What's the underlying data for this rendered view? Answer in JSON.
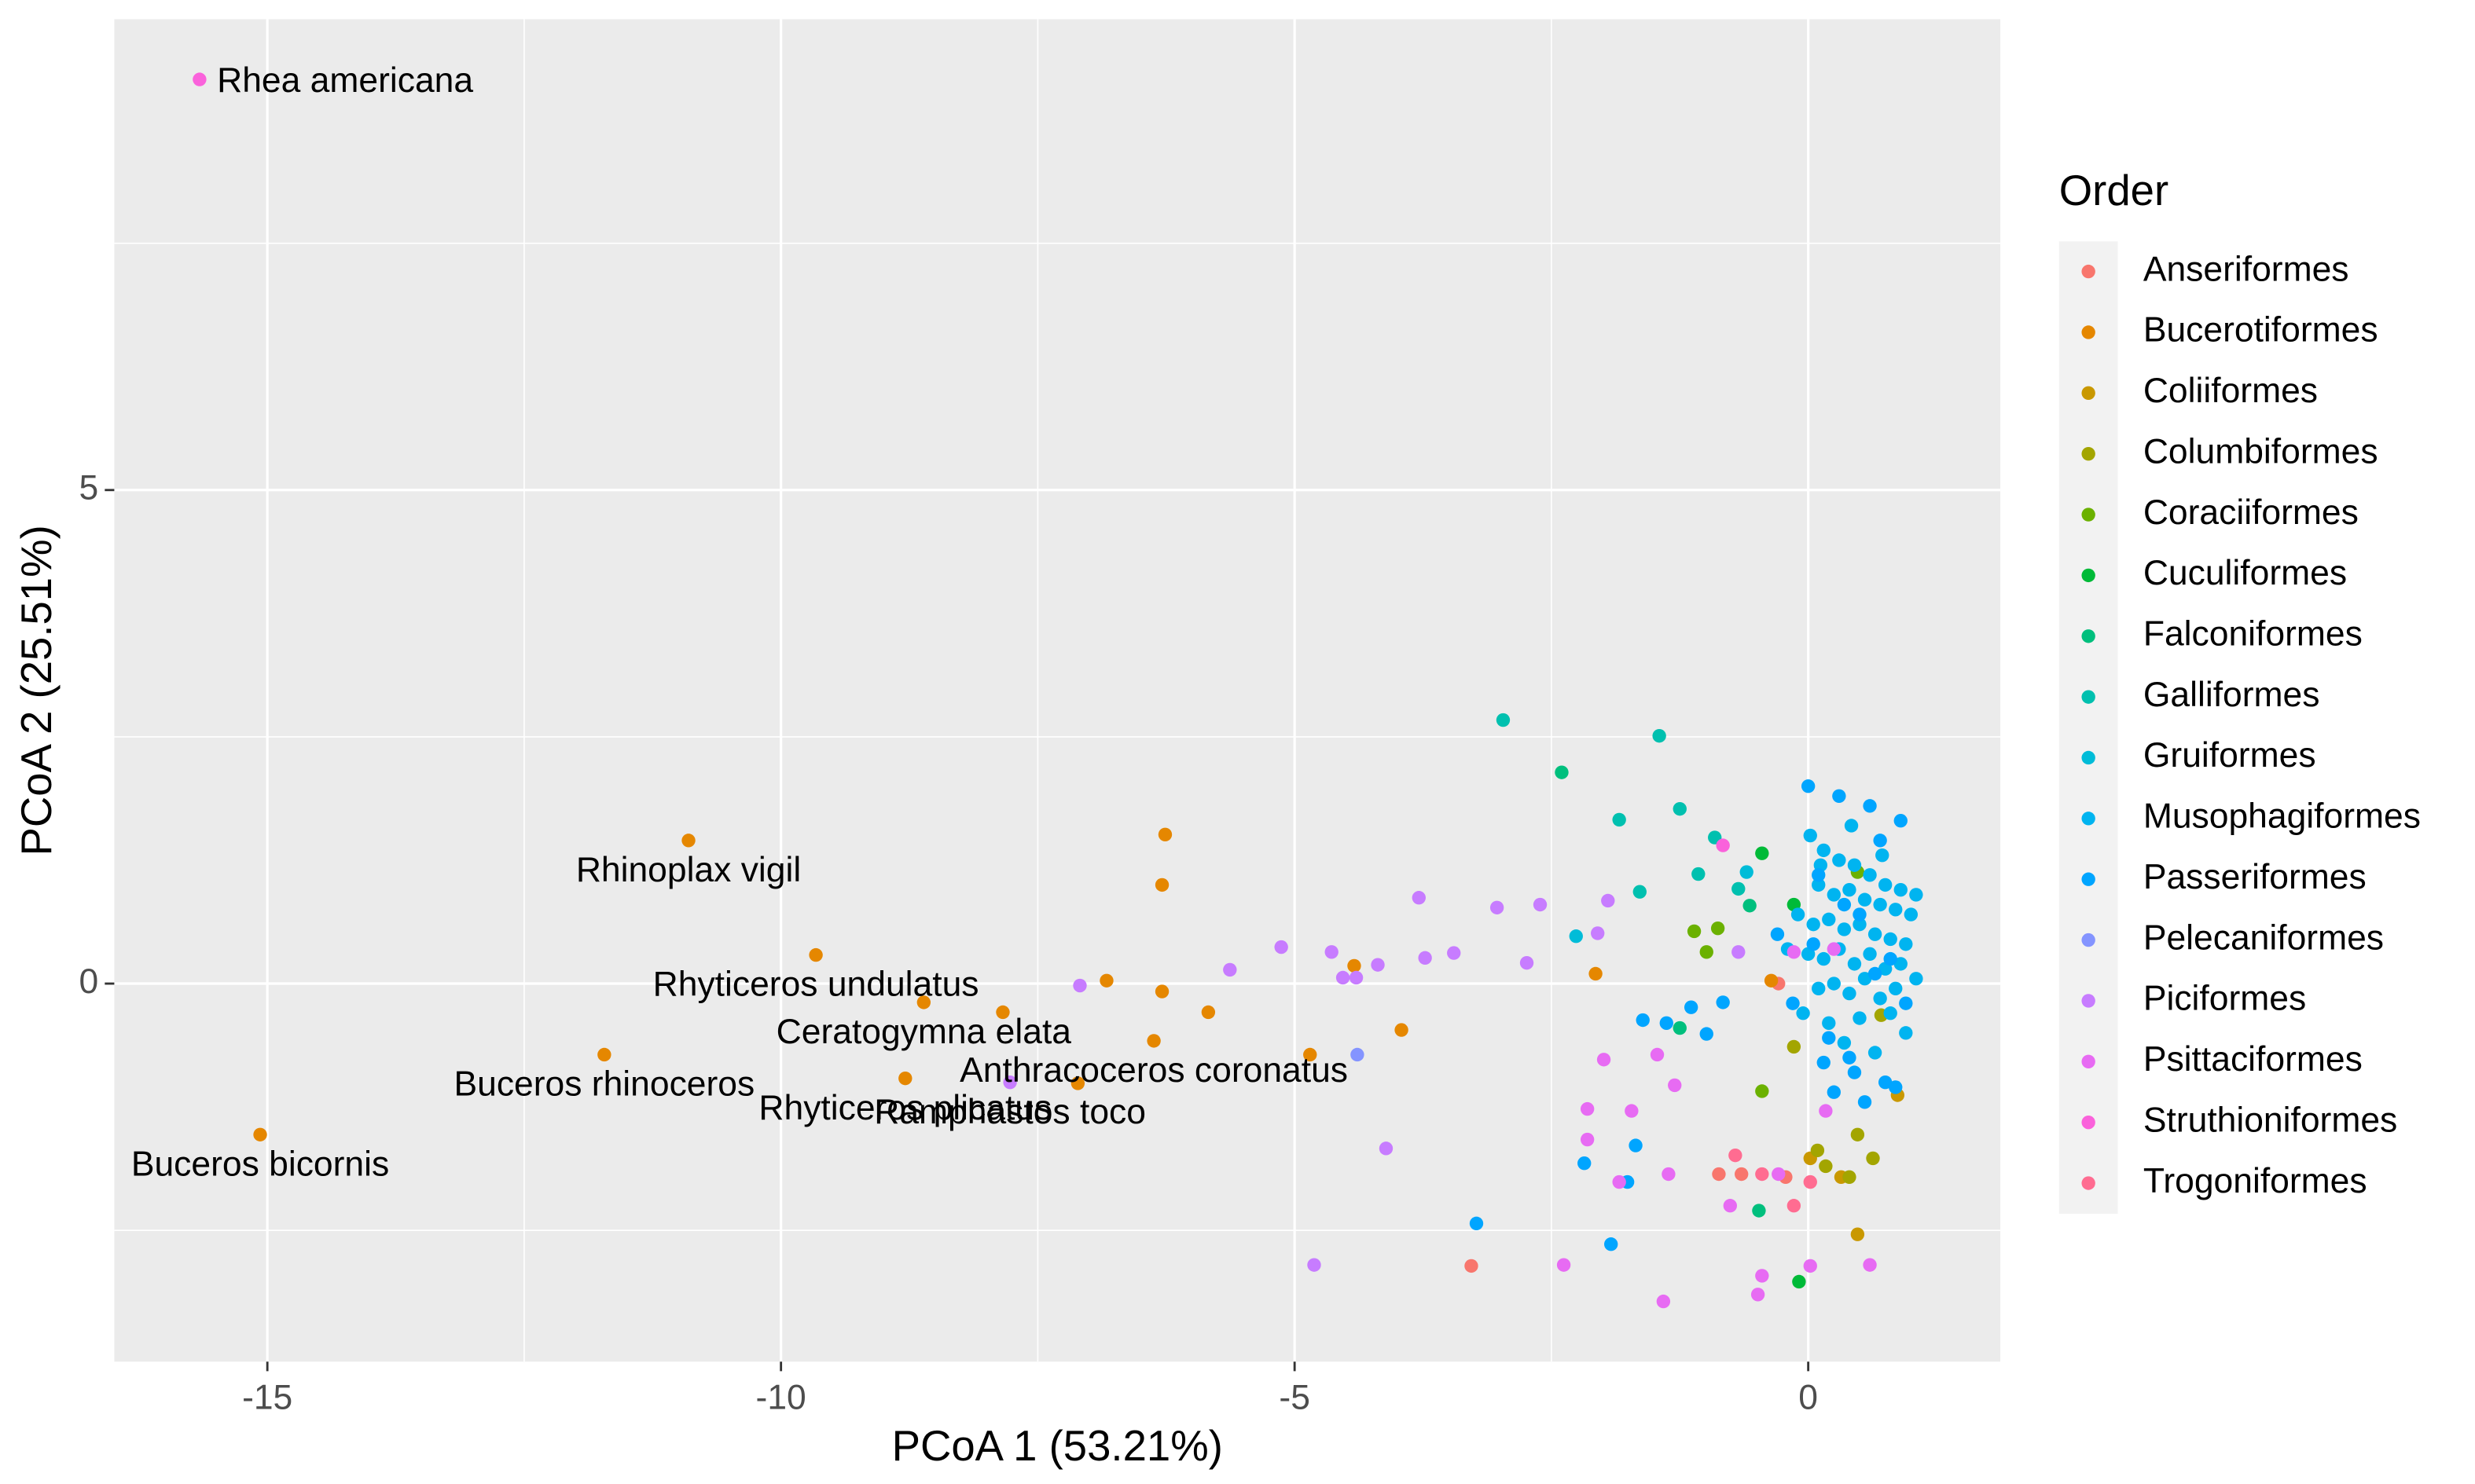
{
  "chart_data": {
    "type": "scatter",
    "x_label": "PCoA 1 (53.21%)",
    "y_label": "PCoA 2 (25.51%)",
    "xlim": [
      -16.49,
      1.87
    ],
    "ylim": [
      -3.83,
      9.77
    ],
    "xticks": [
      -15,
      -10,
      -5,
      0
    ],
    "yticks": [
      0,
      5
    ],
    "x_minor_grid": [
      -12.5,
      -7.5,
      -2.5
    ],
    "y_minor_grid": [
      -2.5,
      2.5,
      7.5
    ],
    "grid": true,
    "legend_title": "Order",
    "legend_position": "right",
    "series": [
      {
        "name": "Anseriformes",
        "color": "#F8766D",
        "x": [
          -3.28,
          -0.87,
          -0.65,
          -0.22,
          -0.29
        ],
        "y": [
          -2.86,
          -1.93,
          -1.93,
          -1.96,
          0.0
        ]
      },
      {
        "name": "Bucerotiformes",
        "color": "#E58700",
        "x": [
          -10.9,
          -9.66,
          -8.61,
          -6.37,
          -11.72,
          -8.79,
          -15.07,
          -7.11,
          -6.26,
          -6.29,
          -6.83,
          -6.29,
          -5.84,
          -7.84,
          -4.42,
          -4.85,
          -3.96,
          -2.07,
          -0.36
        ],
        "y": [
          1.45,
          0.29,
          -0.19,
          -0.58,
          -0.72,
          -0.96,
          -1.53,
          -1.01,
          1.51,
          1.0,
          0.03,
          -0.08,
          -0.29,
          -0.29,
          0.18,
          -0.72,
          -0.47,
          0.1,
          0.03
        ],
        "labels": [
          "Rhinoplax vigil",
          "Rhyticeros undulatus",
          "Ceratogymna elata",
          "Anthracoceros coronatus",
          "Buceros rhinoceros",
          "Rhyticeros plicatus",
          "Buceros bicornis",
          null,
          null,
          null,
          null,
          null,
          null,
          null,
          null,
          null,
          null,
          null,
          null
        ]
      },
      {
        "name": "Coliiformes",
        "color": "#C99800",
        "x": [
          0.48,
          0.02,
          0.32,
          0.87
        ],
        "y": [
          -2.54,
          -1.77,
          -1.96,
          -1.13
        ]
      },
      {
        "name": "Columbiformes",
        "color": "#A3A500",
        "x": [
          0.17,
          0.4,
          0.63,
          0.09,
          0.48,
          -0.14,
          0.71
        ],
        "y": [
          -1.85,
          -1.96,
          -1.77,
          -1.69,
          -1.53,
          -0.64,
          -0.32
        ]
      },
      {
        "name": "Coraciiformes",
        "color": "#6BB100",
        "x": [
          -1.11,
          -0.88,
          -0.99,
          0.48,
          -0.45
        ],
        "y": [
          0.53,
          0.56,
          0.32,
          1.13,
          -1.09
        ]
      },
      {
        "name": "Cuculiformes",
        "color": "#00BA38",
        "x": [
          -0.09,
          -0.45,
          -0.14
        ],
        "y": [
          -3.02,
          1.32,
          0.8
        ]
      },
      {
        "name": "Falconiformes",
        "color": "#00BF7D",
        "x": [
          -2.4,
          -0.57,
          -1.25,
          -0.48
        ],
        "y": [
          2.14,
          0.79,
          -0.45,
          -2.3
        ]
      },
      {
        "name": "Galliformes",
        "color": "#00C0AF",
        "x": [
          -2.97,
          -1.45,
          -1.84,
          -1.25,
          -0.91,
          -1.07,
          -1.64,
          -0.68
        ],
        "y": [
          2.67,
          2.51,
          1.66,
          1.77,
          1.48,
          1.11,
          0.93,
          0.96
        ]
      },
      {
        "name": "Gruiformes",
        "color": "#00BCD8",
        "x": [
          -2.26,
          -0.6
        ],
        "y": [
          0.48,
          1.13
        ]
      },
      {
        "name": "Musophagiformes",
        "color": "#00B4F0",
        "x": [
          0.02,
          0.15,
          0.3,
          0.45,
          0.6,
          0.75,
          0.9,
          1.05,
          0.1,
          0.25,
          0.4,
          0.55,
          0.7,
          0.85,
          1.0,
          -0.1,
          0.05,
          0.2,
          0.35,
          0.5,
          0.65,
          0.8,
          0.95,
          -0.2,
          0.0,
          0.15,
          0.3,
          0.45,
          0.6,
          0.75,
          0.9,
          1.05,
          0.1,
          0.25,
          0.4,
          0.55,
          0.7,
          0.85,
          -0.05,
          0.2,
          0.5,
          0.8,
          0.35,
          0.65,
          0.95,
          0.12,
          0.42,
          0.72
        ],
        "y": [
          1.5,
          1.35,
          1.25,
          1.2,
          1.1,
          1.0,
          0.95,
          0.9,
          1.0,
          0.9,
          0.95,
          0.85,
          0.8,
          0.75,
          0.7,
          0.7,
          0.6,
          0.65,
          0.55,
          0.6,
          0.5,
          0.45,
          0.4,
          0.35,
          0.3,
          0.25,
          0.35,
          0.2,
          0.3,
          0.15,
          0.2,
          0.05,
          -0.05,
          0.0,
          -0.1,
          0.05,
          -0.15,
          -0.05,
          -0.3,
          -0.4,
          -0.35,
          -0.3,
          -0.6,
          -0.7,
          -0.5,
          1.2,
          1.6,
          1.3
        ]
      },
      {
        "name": "Passeriformes",
        "color": "#00A5FF",
        "x": [
          -3.23,
          -2.18,
          -1.92,
          -1.76,
          -1.61,
          -1.38,
          -1.14,
          -0.99,
          -0.83,
          -1.68,
          0.0,
          0.3,
          0.6,
          0.9,
          -0.3,
          0.15,
          0.45,
          0.75,
          -0.15,
          0.25,
          0.55,
          0.85,
          0.05,
          0.35,
          0.65,
          0.95,
          0.2,
          0.5,
          0.8,
          0.1,
          0.4,
          0.7
        ],
        "y": [
          -2.43,
          -1.82,
          -2.64,
          -2.01,
          -0.37,
          -0.4,
          -0.24,
          -0.51,
          -0.19,
          -1.64,
          2.0,
          1.9,
          1.8,
          1.65,
          0.5,
          -0.8,
          -0.9,
          -1.0,
          -0.2,
          -1.1,
          -1.2,
          -1.05,
          0.4,
          0.8,
          0.1,
          -0.2,
          -0.55,
          0.7,
          0.25,
          1.1,
          -0.75,
          1.45
        ]
      },
      {
        "name": "Pelecaniformes",
        "color": "#8494FF",
        "x": [
          -4.39
        ],
        "y": [
          -0.72
        ]
      },
      {
        "name": "Piciformes",
        "color": "#C77CFF",
        "x": [
          -7.77,
          -7.09,
          -5.63,
          -5.13,
          -4.64,
          -4.53,
          -4.4,
          -4.19,
          -3.79,
          -3.73,
          -3.45,
          -3.03,
          -2.74,
          -2.61,
          -1.95,
          -2.05,
          -4.11,
          -4.81,
          -0.68
        ],
        "y": [
          -1.0,
          -0.02,
          0.14,
          0.37,
          0.32,
          0.06,
          0.06,
          0.19,
          0.87,
          0.26,
          0.31,
          0.77,
          0.21,
          0.8,
          0.84,
          0.51,
          -1.67,
          -2.85,
          0.32
        ],
        "labels": [
          "Ramphastos toco",
          null,
          null,
          null,
          null,
          null,
          null,
          null,
          null,
          null,
          null,
          null,
          null,
          null,
          null,
          null,
          null,
          null,
          null
        ]
      },
      {
        "name": "Psittaciformes",
        "color": "#E76BF3",
        "x": [
          -2.38,
          -1.41,
          -2.15,
          -1.99,
          -2.15,
          -1.72,
          -1.47,
          -1.3,
          -1.84,
          -1.36,
          -0.76,
          -0.45,
          -0.49,
          0.02,
          0.6,
          -0.29,
          0.17,
          -0.14,
          0.25
        ],
        "y": [
          -2.85,
          -3.22,
          -1.58,
          -0.77,
          -1.27,
          -1.29,
          -0.72,
          -1.03,
          -2.01,
          -1.93,
          -2.25,
          -2.96,
          -3.15,
          -2.86,
          -2.85,
          -1.93,
          -1.29,
          0.32,
          0.35
        ]
      },
      {
        "name": "Struthioniformes",
        "color": "#FA62DB",
        "x": [
          -15.66,
          -0.83
        ],
        "y": [
          9.16,
          1.4
        ],
        "labels": [
          "Rhea americana",
          null
        ]
      },
      {
        "name": "Trogoniformes",
        "color": "#FF6C91",
        "x": [
          -0.45,
          -0.14,
          -0.71,
          0.02
        ],
        "y": [
          -1.93,
          -2.25,
          -1.74,
          -2.01
        ]
      }
    ]
  }
}
